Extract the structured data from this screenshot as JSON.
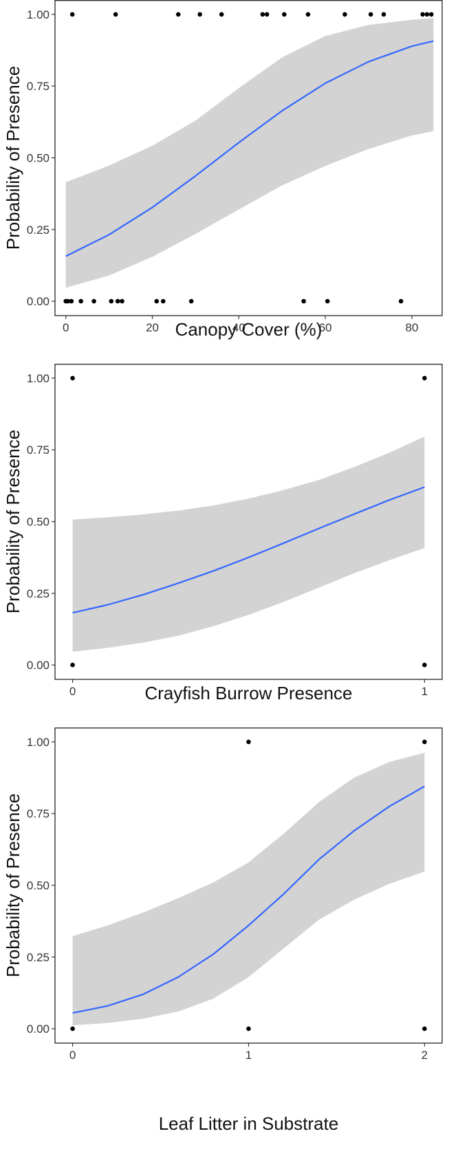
{
  "figure": {
    "colors": {
      "band": "#d3d3d3",
      "line": "#3366ff",
      "points": "#000000",
      "frame": "#222222",
      "background": "#ffffff"
    }
  },
  "chart_data": [
    {
      "type": "line",
      "xlabel": "Canopy Cover (%)",
      "ylabel": "Probability of Presence",
      "xlim": [
        -2.5,
        87
      ],
      "ylim": [
        -0.05,
        1.05
      ],
      "xticks": [
        0,
        20,
        40,
        60,
        80
      ],
      "xtick_labels": [
        "0",
        "20",
        "40",
        "60",
        "80"
      ],
      "yticks": [
        0,
        0.25,
        0.5,
        0.75,
        1
      ],
      "ytick_labels": [
        "0.00",
        "0.25",
        "0.50",
        "0.75",
        "1.00"
      ],
      "grid": false,
      "legend": "none",
      "fit": {
        "x": [
          0,
          10,
          20,
          30,
          40,
          50,
          60,
          70,
          80,
          85
        ],
        "y": [
          0.157,
          0.232,
          0.327,
          0.437,
          0.553,
          0.664,
          0.76,
          0.835,
          0.889,
          0.907
        ],
        "lower": [
          0.047,
          0.09,
          0.155,
          0.235,
          0.32,
          0.404,
          0.472,
          0.531,
          0.578,
          0.593
        ],
        "upper": [
          0.415,
          0.473,
          0.542,
          0.63,
          0.743,
          0.85,
          0.925,
          0.963,
          0.981,
          0.987
        ]
      },
      "points": {
        "x": [
          1.5,
          11.5,
          26,
          31,
          36,
          45.5,
          46.5,
          50.5,
          56,
          64.5,
          70.5,
          73.5,
          82.5,
          83.5,
          84.5,
          0,
          0.5,
          1.3,
          3.5,
          6.5,
          10.5,
          12,
          13,
          21,
          22.5,
          29,
          55,
          60.5,
          77.5
        ],
        "y": [
          1,
          1,
          1,
          1,
          1,
          1,
          1,
          1,
          1,
          1,
          1,
          1,
          1,
          1,
          1,
          0,
          0,
          0,
          0,
          0,
          0,
          0,
          0,
          0,
          0,
          0,
          0,
          0,
          0
        ]
      }
    },
    {
      "type": "line",
      "xlabel": "Crayfish Burrow Presence",
      "ylabel": "Probability of Presence",
      "xlim": [
        -0.05,
        1.05
      ],
      "ylim": [
        -0.05,
        1.05
      ],
      "xticks": [
        0,
        1
      ],
      "xtick_labels": [
        "0",
        "1"
      ],
      "yticks": [
        0,
        0.25,
        0.5,
        0.75,
        1
      ],
      "ytick_labels": [
        "0.00",
        "0.25",
        "0.50",
        "0.75",
        "1.00"
      ],
      "grid": false,
      "legend": "none",
      "fit": {
        "x": [
          0,
          0.1,
          0.2,
          0.3,
          0.4,
          0.5,
          0.6,
          0.7,
          0.8,
          0.9,
          1.0
        ],
        "y": [
          0.182,
          0.21,
          0.245,
          0.285,
          0.328,
          0.375,
          0.425,
          0.476,
          0.526,
          0.575,
          0.62
        ],
        "lower": [
          0.046,
          0.06,
          0.078,
          0.102,
          0.135,
          0.175,
          0.22,
          0.27,
          0.32,
          0.365,
          0.408
        ],
        "upper": [
          0.507,
          0.515,
          0.525,
          0.538,
          0.556,
          0.58,
          0.61,
          0.645,
          0.69,
          0.74,
          0.796
        ]
      },
      "points": {
        "x": [
          0,
          0,
          1,
          1
        ],
        "y": [
          1,
          0,
          1,
          0
        ]
      }
    },
    {
      "type": "line",
      "xlabel": "Leaf Litter in Substrate",
      "ylabel": "Probability of Presence",
      "xlim": [
        -0.1,
        2.1
      ],
      "ylim": [
        -0.05,
        1.05
      ],
      "xticks": [
        0,
        1,
        2
      ],
      "xtick_labels": [
        "0",
        "1",
        "2"
      ],
      "yticks": [
        0,
        0.25,
        0.5,
        0.75,
        1
      ],
      "ytick_labels": [
        "0.00",
        "0.25",
        "0.50",
        "0.75",
        "1.00"
      ],
      "grid": false,
      "legend": "none",
      "fit": {
        "x": [
          0,
          0.2,
          0.4,
          0.6,
          0.8,
          1.0,
          1.2,
          1.4,
          1.6,
          1.8,
          2.0
        ],
        "y": [
          0.055,
          0.08,
          0.12,
          0.18,
          0.26,
          0.36,
          0.47,
          0.59,
          0.69,
          0.775,
          0.845
        ],
        "lower": [
          0.012,
          0.02,
          0.035,
          0.06,
          0.105,
          0.18,
          0.28,
          0.38,
          0.45,
          0.505,
          0.548
        ],
        "upper": [
          0.323,
          0.36,
          0.405,
          0.455,
          0.51,
          0.58,
          0.68,
          0.79,
          0.875,
          0.93,
          0.962
        ]
      },
      "points": {
        "x": [
          1,
          2,
          0,
          1,
          2
        ],
        "y": [
          1,
          1,
          0,
          0,
          0
        ]
      }
    }
  ]
}
